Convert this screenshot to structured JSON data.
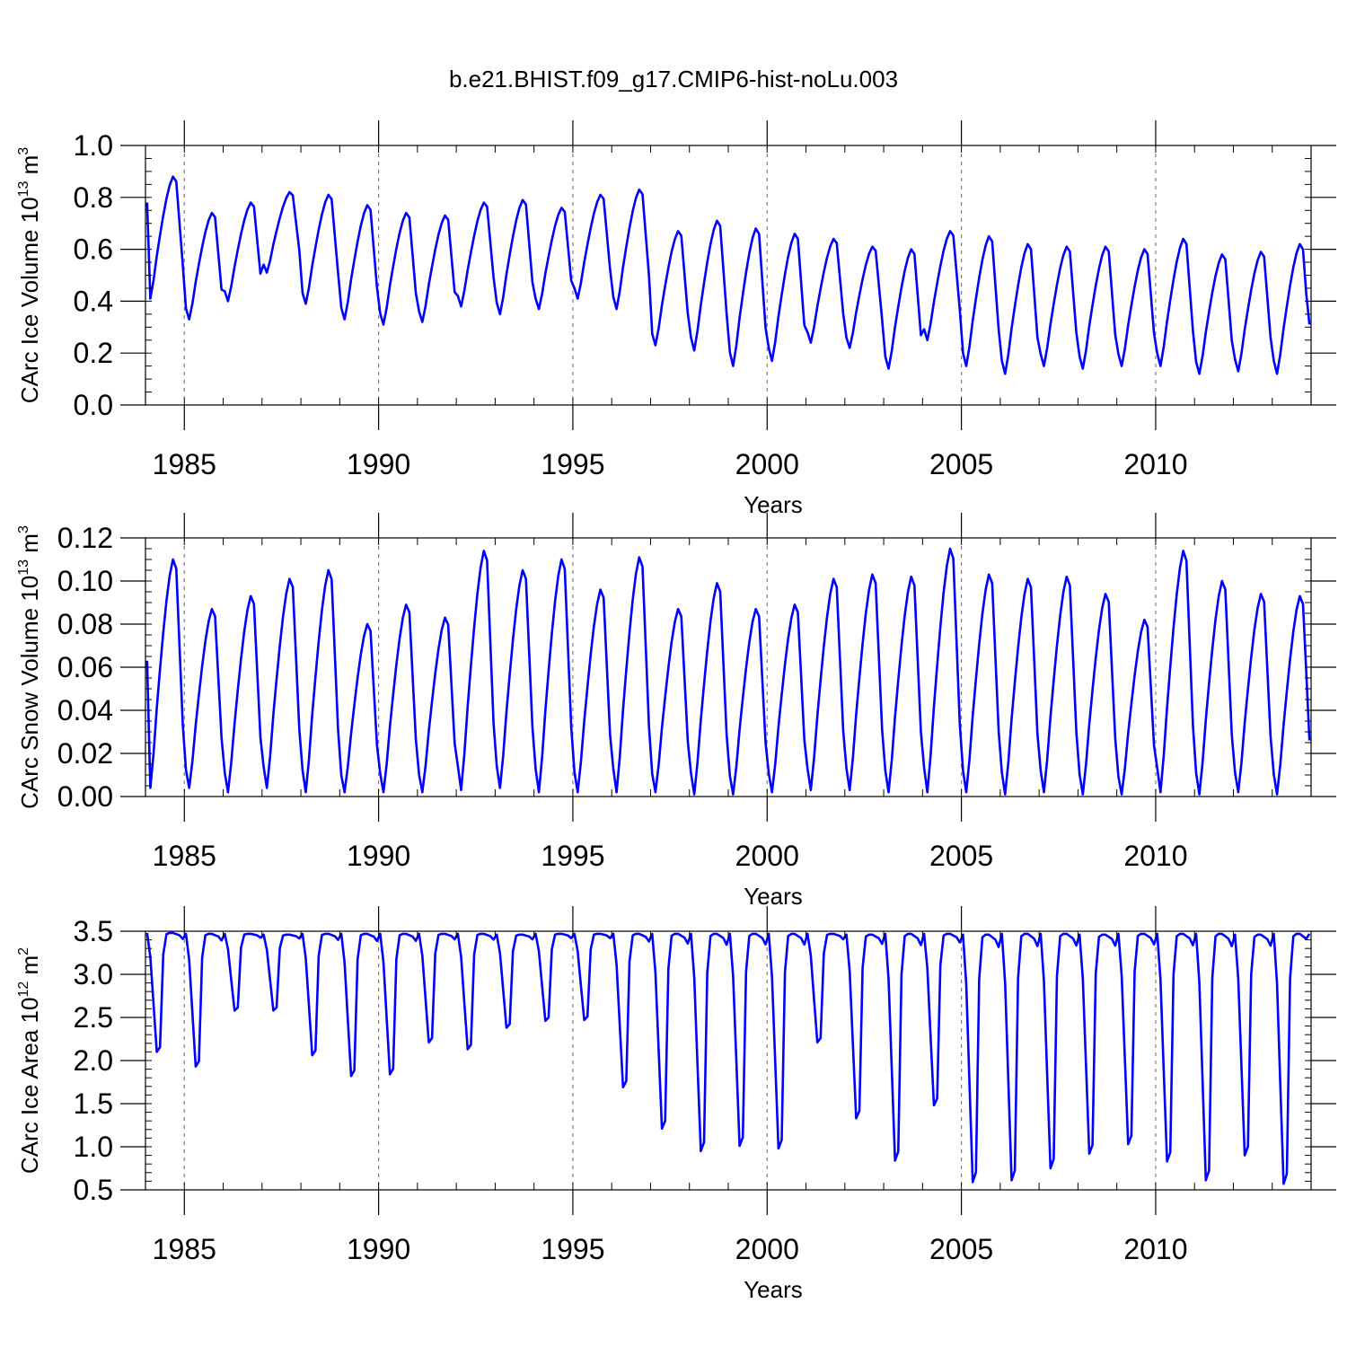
{
  "title": "b.e21.BHIST.f09_g17.CMIP6-hist-noLu.003",
  "colors": {
    "line": "#0000ff",
    "axis": "#000000",
    "grid": "#808080"
  },
  "chart_data": [
    {
      "type": "line",
      "ylabel": {
        "main": "CArc Ice Volume 10",
        "sup1": "13",
        "mid": " m",
        "sup2": "3"
      },
      "xlabel": "Years",
      "xlim": [
        1984.0,
        2014.0
      ],
      "ylim": [
        0.0,
        1.0
      ],
      "xticks": [
        1985,
        1990,
        1995,
        2000,
        2005,
        2010
      ],
      "xtick_labels": [
        "1985",
        "1990",
        "1995",
        "2000",
        "2005",
        "2010"
      ],
      "yticks": [
        0.0,
        0.2,
        0.4,
        0.6,
        0.8,
        1.0
      ],
      "ytick_labels": [
        "0.0",
        "0.2",
        "0.4",
        "0.6",
        "0.8",
        "1.0"
      ],
      "yminor": 0.05,
      "seasonal": {
        "max": [
          0.88,
          0.74,
          0.78,
          0.82,
          0.81,
          0.77,
          0.74,
          0.73,
          0.78,
          0.79,
          0.76,
          0.81,
          0.83,
          0.67,
          0.71,
          0.68,
          0.66,
          0.64,
          0.61,
          0.6,
          0.67,
          0.65,
          0.62,
          0.61,
          0.61,
          0.6,
          0.64,
          0.58,
          0.59,
          0.62
        ],
        "min": [
          0.41,
          0.33,
          0.4,
          0.51,
          0.39,
          0.33,
          0.31,
          0.32,
          0.38,
          0.35,
          0.37,
          0.41,
          0.37,
          0.23,
          0.21,
          0.15,
          0.17,
          0.24,
          0.22,
          0.14,
          0.25,
          0.15,
          0.12,
          0.15,
          0.14,
          0.15,
          0.15,
          0.12,
          0.13,
          0.12
        ]
      },
      "series": [
        {
          "name": "CArc Ice Volume",
          "start": 0.78,
          "end": 0.31
        }
      ]
    },
    {
      "type": "line",
      "ylabel": {
        "main": "CArc Snow Volume 10",
        "sup1": "13",
        "mid": " m",
        "sup2": "3"
      },
      "xlabel": "Years",
      "xlim": [
        1984.0,
        2014.0
      ],
      "ylim": [
        0.0,
        0.12
      ],
      "xticks": [
        1985,
        1990,
        1995,
        2000,
        2005,
        2010
      ],
      "xtick_labels": [
        "1985",
        "1990",
        "1995",
        "2000",
        "2005",
        "2010"
      ],
      "yticks": [
        0.0,
        0.02,
        0.04,
        0.06,
        0.08,
        0.1,
        0.12
      ],
      "ytick_labels": [
        "0.00",
        "0.02",
        "0.04",
        "0.06",
        "0.08",
        "0.10",
        "0.12"
      ],
      "yminor": 0.005,
      "seasonal": {
        "max": [
          0.11,
          0.087,
          0.093,
          0.101,
          0.105,
          0.08,
          0.089,
          0.083,
          0.114,
          0.105,
          0.11,
          0.096,
          0.111,
          0.087,
          0.099,
          0.087,
          0.089,
          0.101,
          0.103,
          0.102,
          0.115,
          0.103,
          0.101,
          0.102,
          0.094,
          0.082,
          0.114,
          0.1,
          0.094,
          0.093
        ],
        "min": [
          0.004,
          0.004,
          0.002,
          0.004,
          0.002,
          0.002,
          0.002,
          0.002,
          0.003,
          0.004,
          0.002,
          0.002,
          0.002,
          0.002,
          0.001,
          0.001,
          0.002,
          0.003,
          0.003,
          0.002,
          0.002,
          0.002,
          0.001,
          0.002,
          0.001,
          0.001,
          0.002,
          0.001,
          0.002,
          0.001
        ]
      },
      "series": [
        {
          "name": "CArc Snow Volume",
          "start": 0.063,
          "end": 0.026
        }
      ]
    },
    {
      "type": "line",
      "ylabel": {
        "main": "CArc Ice Area 10",
        "sup1": "12",
        "mid": " m",
        "sup2": "2"
      },
      "xlabel": "Years",
      "xlim": [
        1984.0,
        2014.0
      ],
      "ylim": [
        0.5,
        3.5
      ],
      "xticks": [
        1985,
        1990,
        1995,
        2000,
        2005,
        2010
      ],
      "xtick_labels": [
        "1985",
        "1990",
        "1995",
        "2000",
        "2005",
        "2010"
      ],
      "yticks": [
        0.5,
        1.0,
        1.5,
        2.0,
        2.5,
        3.0,
        3.5
      ],
      "ytick_labels": [
        "0.5",
        "1.0",
        "1.5",
        "2.0",
        "2.5",
        "3.0",
        "3.5"
      ],
      "yminor": 0.1,
      "seasonal": {
        "max": [
          3.48,
          3.47,
          3.47,
          3.46,
          3.47,
          3.47,
          3.47,
          3.47,
          3.47,
          3.46,
          3.47,
          3.47,
          3.47,
          3.47,
          3.47,
          3.47,
          3.47,
          3.47,
          3.46,
          3.47,
          3.47,
          3.46,
          3.47,
          3.47,
          3.46,
          3.47,
          3.47,
          3.47,
          3.46,
          3.47
        ],
        "min": [
          2.1,
          1.93,
          2.58,
          2.58,
          2.06,
          1.82,
          1.84,
          2.21,
          2.13,
          2.38,
          2.46,
          2.47,
          1.69,
          1.21,
          0.95,
          1.01,
          0.98,
          2.21,
          1.33,
          0.84,
          1.48,
          0.59,
          0.61,
          0.75,
          0.92,
          1.03,
          0.83,
          0.61,
          0.9,
          0.57
        ]
      },
      "series": [
        {
          "name": "CArc Ice Area",
          "start": 3.48,
          "end": 3.47
        }
      ]
    }
  ]
}
